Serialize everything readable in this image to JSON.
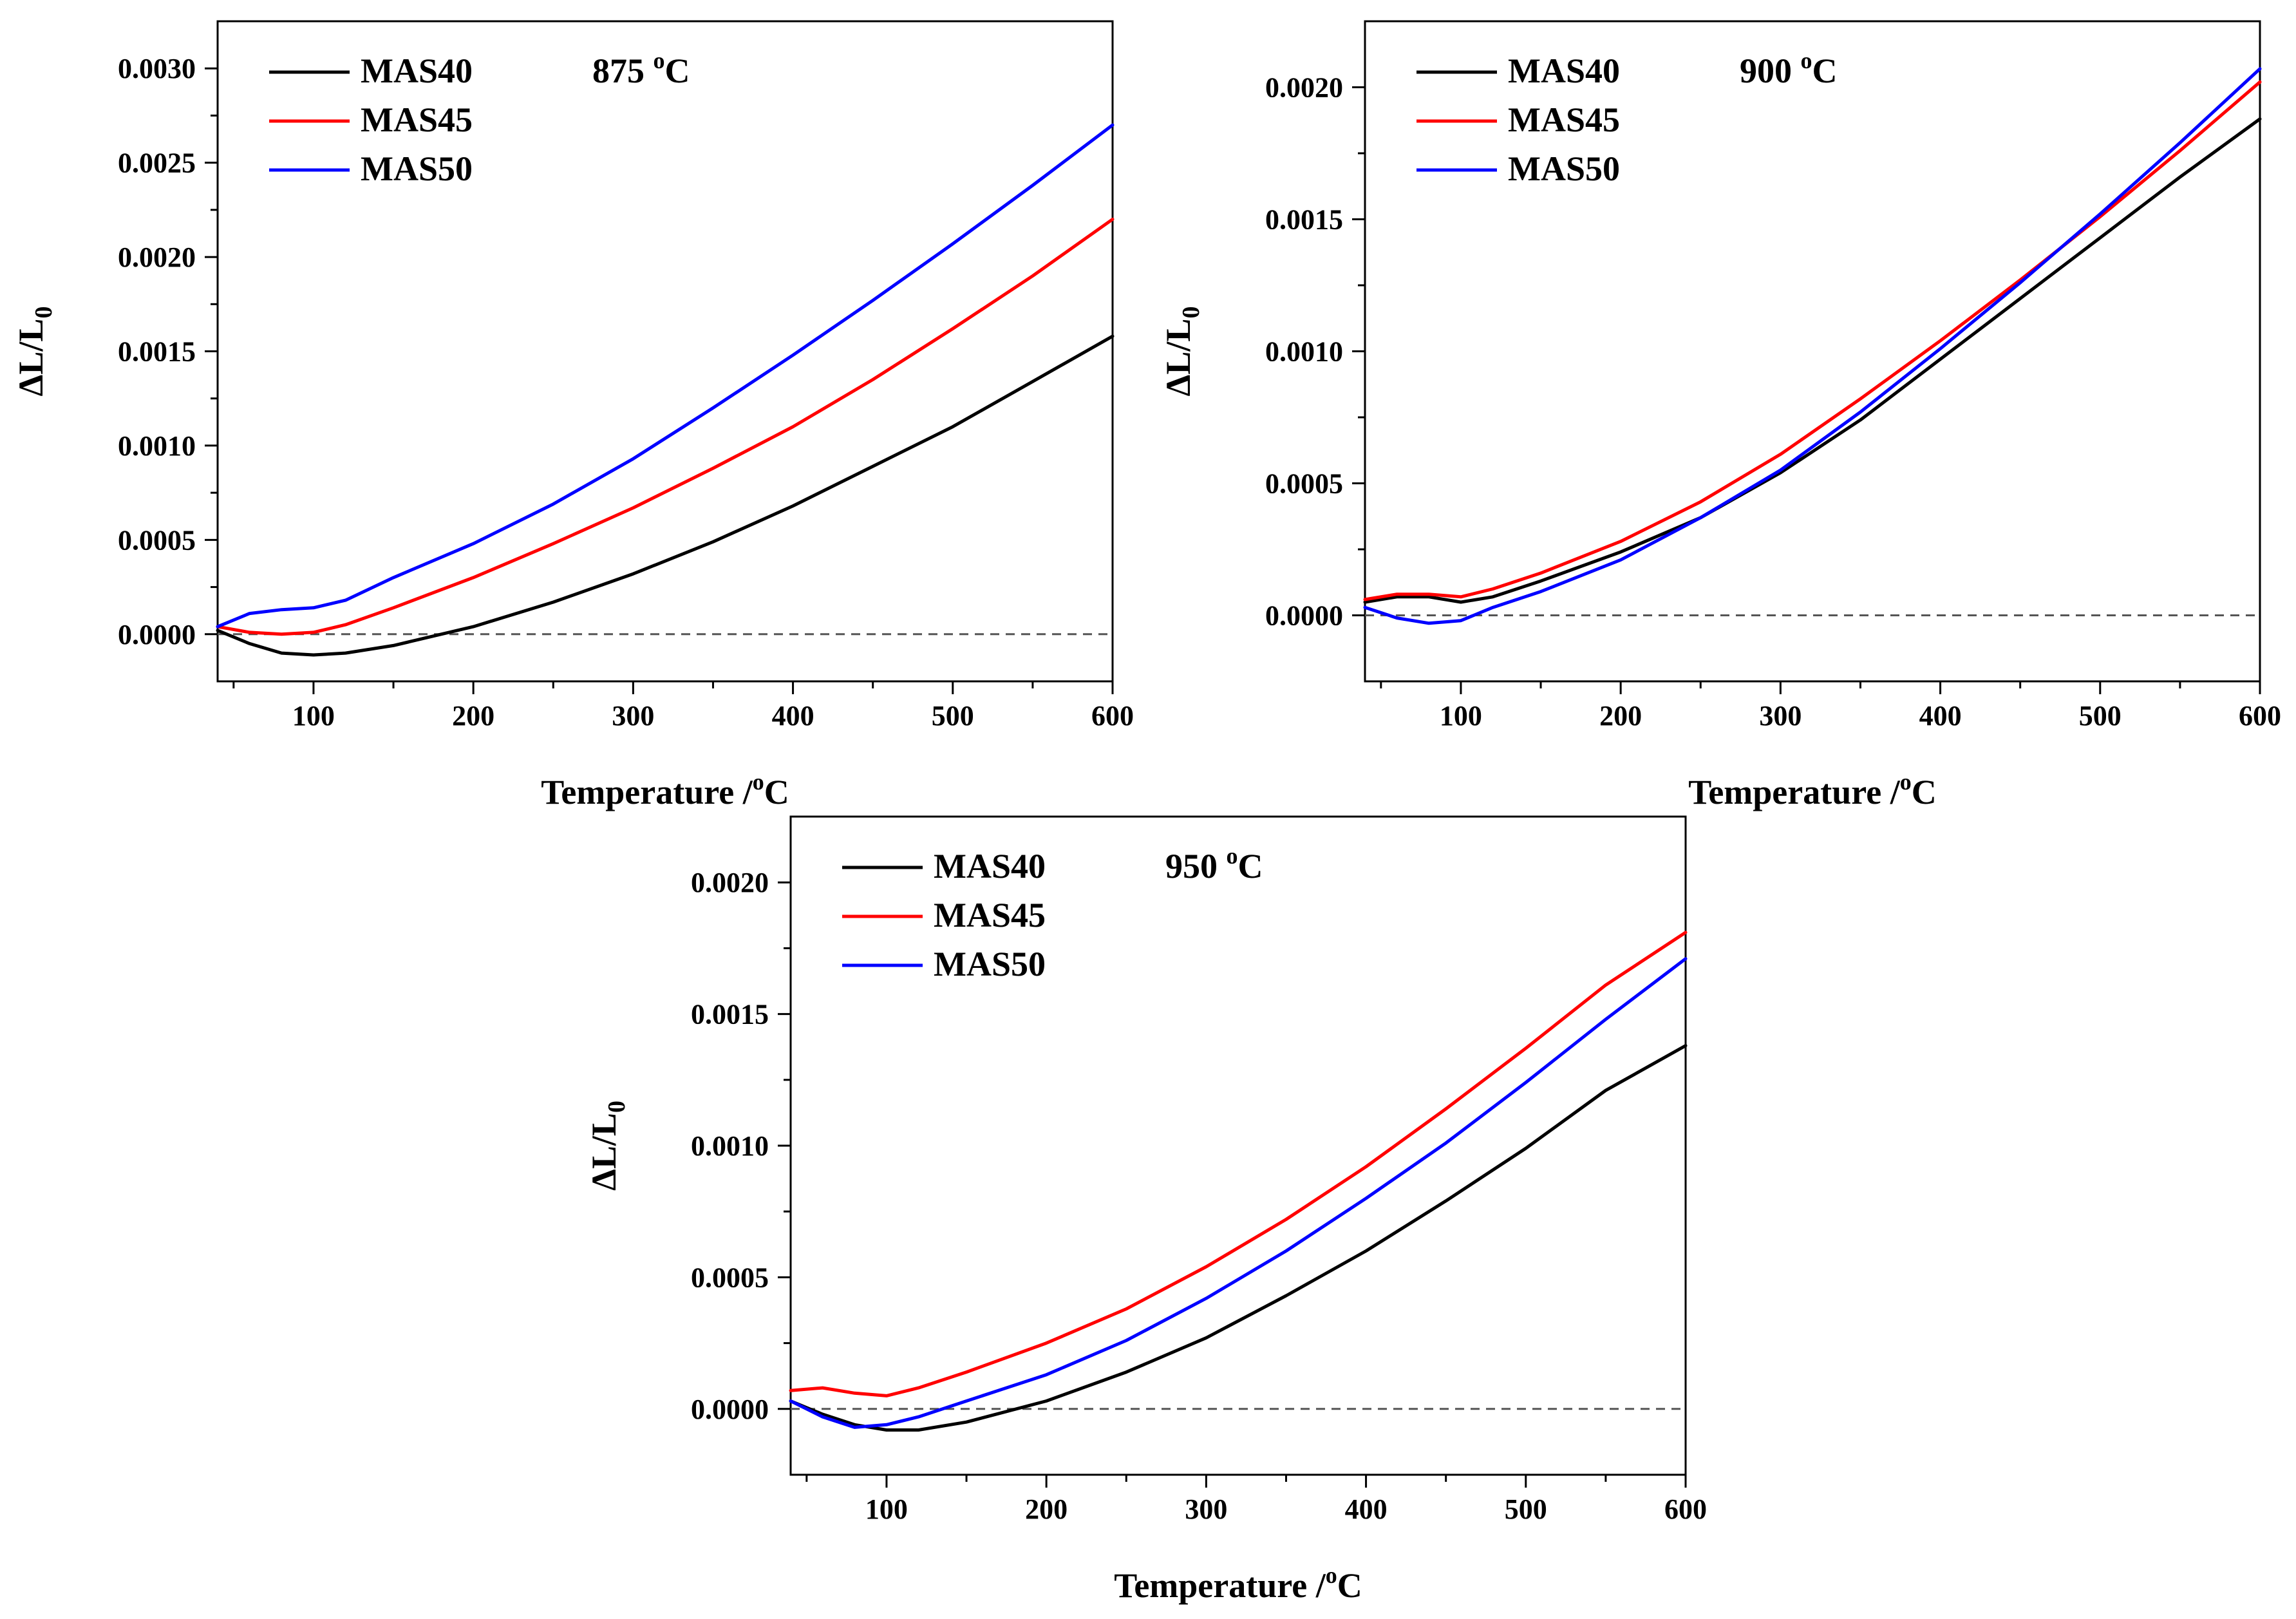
{
  "chart_data": [
    {
      "type": "line",
      "title": "",
      "annotation": {
        "value": "875 ",
        "unit_sup": "o",
        "unit": "C"
      },
      "xlabel": {
        "text": "Temperature /",
        "sup": "o",
        "unit": "C"
      },
      "ylabel": {
        "delta": "ΔL/L",
        "sub": "0"
      },
      "xlim": [
        40,
        600
      ],
      "ylim": [
        -0.00025,
        0.00325
      ],
      "xticks": [
        100,
        200,
        300,
        400,
        500,
        600
      ],
      "xtick_labels": [
        "100",
        "200",
        "300",
        "400",
        "500",
        "600"
      ],
      "yticks": [
        0,
        0.0005,
        0.001,
        0.0015,
        0.002,
        0.0025,
        0.003
      ],
      "ytick_labels": [
        "0.0000",
        "0.0005",
        "0.0010",
        "0.0015",
        "0.0020",
        "0.0025",
        "0.0030"
      ],
      "reference_line": 0,
      "legend": "top-left",
      "series": [
        {
          "name": "MAS40",
          "color": "#000000",
          "x": [
            40,
            60,
            80,
            100,
            120,
            150,
            200,
            250,
            300,
            350,
            400,
            450,
            500,
            550,
            600
          ],
          "y": [
            2e-05,
            -5e-05,
            -0.0001,
            -0.00011,
            -0.0001,
            -6e-05,
            4e-05,
            0.00017,
            0.00032,
            0.00049,
            0.00068,
            0.00089,
            0.0011,
            0.00134,
            0.00158
          ]
        },
        {
          "name": "MAS45",
          "color": "#ff0000",
          "x": [
            40,
            60,
            80,
            100,
            120,
            150,
            200,
            250,
            300,
            350,
            400,
            450,
            500,
            550,
            600
          ],
          "y": [
            4e-05,
            1e-05,
            0.0,
            1e-05,
            5e-05,
            0.00014,
            0.0003,
            0.00048,
            0.00067,
            0.00088,
            0.0011,
            0.00135,
            0.00162,
            0.0019,
            0.0022
          ]
        },
        {
          "name": "MAS50",
          "color": "#0000ff",
          "x": [
            40,
            60,
            80,
            100,
            120,
            150,
            200,
            250,
            300,
            350,
            400,
            450,
            500,
            550,
            600
          ],
          "y": [
            4e-05,
            0.00011,
            0.00013,
            0.00014,
            0.00018,
            0.0003,
            0.00048,
            0.00069,
            0.00093,
            0.0012,
            0.00148,
            0.00177,
            0.00207,
            0.00238,
            0.0027
          ]
        }
      ]
    },
    {
      "type": "line",
      "title": "",
      "annotation": {
        "value": "900 ",
        "unit_sup": "o",
        "unit": "C"
      },
      "xlabel": {
        "text": "Temperature /",
        "sup": "o",
        "unit": "C"
      },
      "ylabel": {
        "delta": "ΔL/L",
        "sub": "0"
      },
      "xlim": [
        40,
        600
      ],
      "ylim": [
        -0.00025,
        0.00225
      ],
      "xticks": [
        100,
        200,
        300,
        400,
        500,
        600
      ],
      "xtick_labels": [
        "100",
        "200",
        "300",
        "400",
        "500",
        "600"
      ],
      "yticks": [
        0,
        0.0005,
        0.001,
        0.0015,
        0.002
      ],
      "ytick_labels": [
        "0.0000",
        "0.0005",
        "0.0010",
        "0.0015",
        "0.0020"
      ],
      "reference_line": 0,
      "legend": "top-left",
      "series": [
        {
          "name": "MAS40",
          "color": "#000000",
          "x": [
            40,
            60,
            80,
            100,
            120,
            150,
            200,
            250,
            300,
            350,
            400,
            450,
            500,
            550,
            600
          ],
          "y": [
            5e-05,
            7e-05,
            7e-05,
            5e-05,
            7e-05,
            0.00013,
            0.00024,
            0.00037,
            0.00054,
            0.00074,
            0.00097,
            0.0012,
            0.00143,
            0.00166,
            0.00188
          ]
        },
        {
          "name": "MAS45",
          "color": "#ff0000",
          "x": [
            40,
            60,
            80,
            100,
            120,
            150,
            200,
            250,
            300,
            350,
            400,
            450,
            500,
            550,
            600
          ],
          "y": [
            6e-05,
            8e-05,
            8e-05,
            7e-05,
            0.0001,
            0.00016,
            0.00028,
            0.00043,
            0.00061,
            0.00082,
            0.00104,
            0.00127,
            0.00151,
            0.00176,
            0.00202
          ]
        },
        {
          "name": "MAS50",
          "color": "#0000ff",
          "x": [
            40,
            60,
            80,
            100,
            120,
            150,
            200,
            250,
            300,
            350,
            400,
            450,
            500,
            550,
            600
          ],
          "y": [
            3e-05,
            -1e-05,
            -3e-05,
            -2e-05,
            3e-05,
            9e-05,
            0.00021,
            0.00037,
            0.00055,
            0.00077,
            0.00101,
            0.00126,
            0.00152,
            0.00179,
            0.00207
          ]
        }
      ]
    },
    {
      "type": "line",
      "title": "",
      "annotation": {
        "value": "950 ",
        "unit_sup": "o",
        "unit": "C"
      },
      "xlabel": {
        "text": "Temperature /",
        "sup": "o",
        "unit": "C"
      },
      "ylabel": {
        "delta": "ΔL/L",
        "sub": "0"
      },
      "xlim": [
        40,
        600
      ],
      "ylim": [
        -0.00025,
        0.00225
      ],
      "xticks": [
        100,
        200,
        300,
        400,
        500,
        600
      ],
      "xtick_labels": [
        "100",
        "200",
        "300",
        "400",
        "500",
        "600"
      ],
      "yticks": [
        0,
        0.0005,
        0.001,
        0.0015,
        0.002
      ],
      "ytick_labels": [
        "0.0000",
        "0.0005",
        "0.0010",
        "0.0015",
        "0.0020"
      ],
      "reference_line": 0,
      "legend": "top-left",
      "series": [
        {
          "name": "MAS40",
          "color": "#000000",
          "x": [
            40,
            60,
            80,
            100,
            120,
            150,
            200,
            250,
            300,
            350,
            400,
            450,
            500,
            550,
            600
          ],
          "y": [
            3e-05,
            -2e-05,
            -6e-05,
            -8e-05,
            -8e-05,
            -5e-05,
            3e-05,
            0.00014,
            0.00027,
            0.00043,
            0.0006,
            0.00079,
            0.00099,
            0.00121,
            0.00138
          ]
        },
        {
          "name": "MAS45",
          "color": "#ff0000",
          "x": [
            40,
            60,
            80,
            100,
            120,
            150,
            200,
            250,
            300,
            350,
            400,
            450,
            500,
            550,
            600
          ],
          "y": [
            7e-05,
            8e-05,
            6e-05,
            5e-05,
            8e-05,
            0.00014,
            0.00025,
            0.00038,
            0.00054,
            0.00072,
            0.00092,
            0.00114,
            0.00137,
            0.00161,
            0.00181
          ]
        },
        {
          "name": "MAS50",
          "color": "#0000ff",
          "x": [
            40,
            60,
            80,
            100,
            120,
            150,
            200,
            250,
            300,
            350,
            400,
            450,
            500,
            550,
            600
          ],
          "y": [
            3e-05,
            -3e-05,
            -7e-05,
            -6e-05,
            -3e-05,
            3e-05,
            0.00013,
            0.00026,
            0.00042,
            0.0006,
            0.0008,
            0.00101,
            0.00124,
            0.00148,
            0.00171
          ]
        }
      ]
    }
  ]
}
